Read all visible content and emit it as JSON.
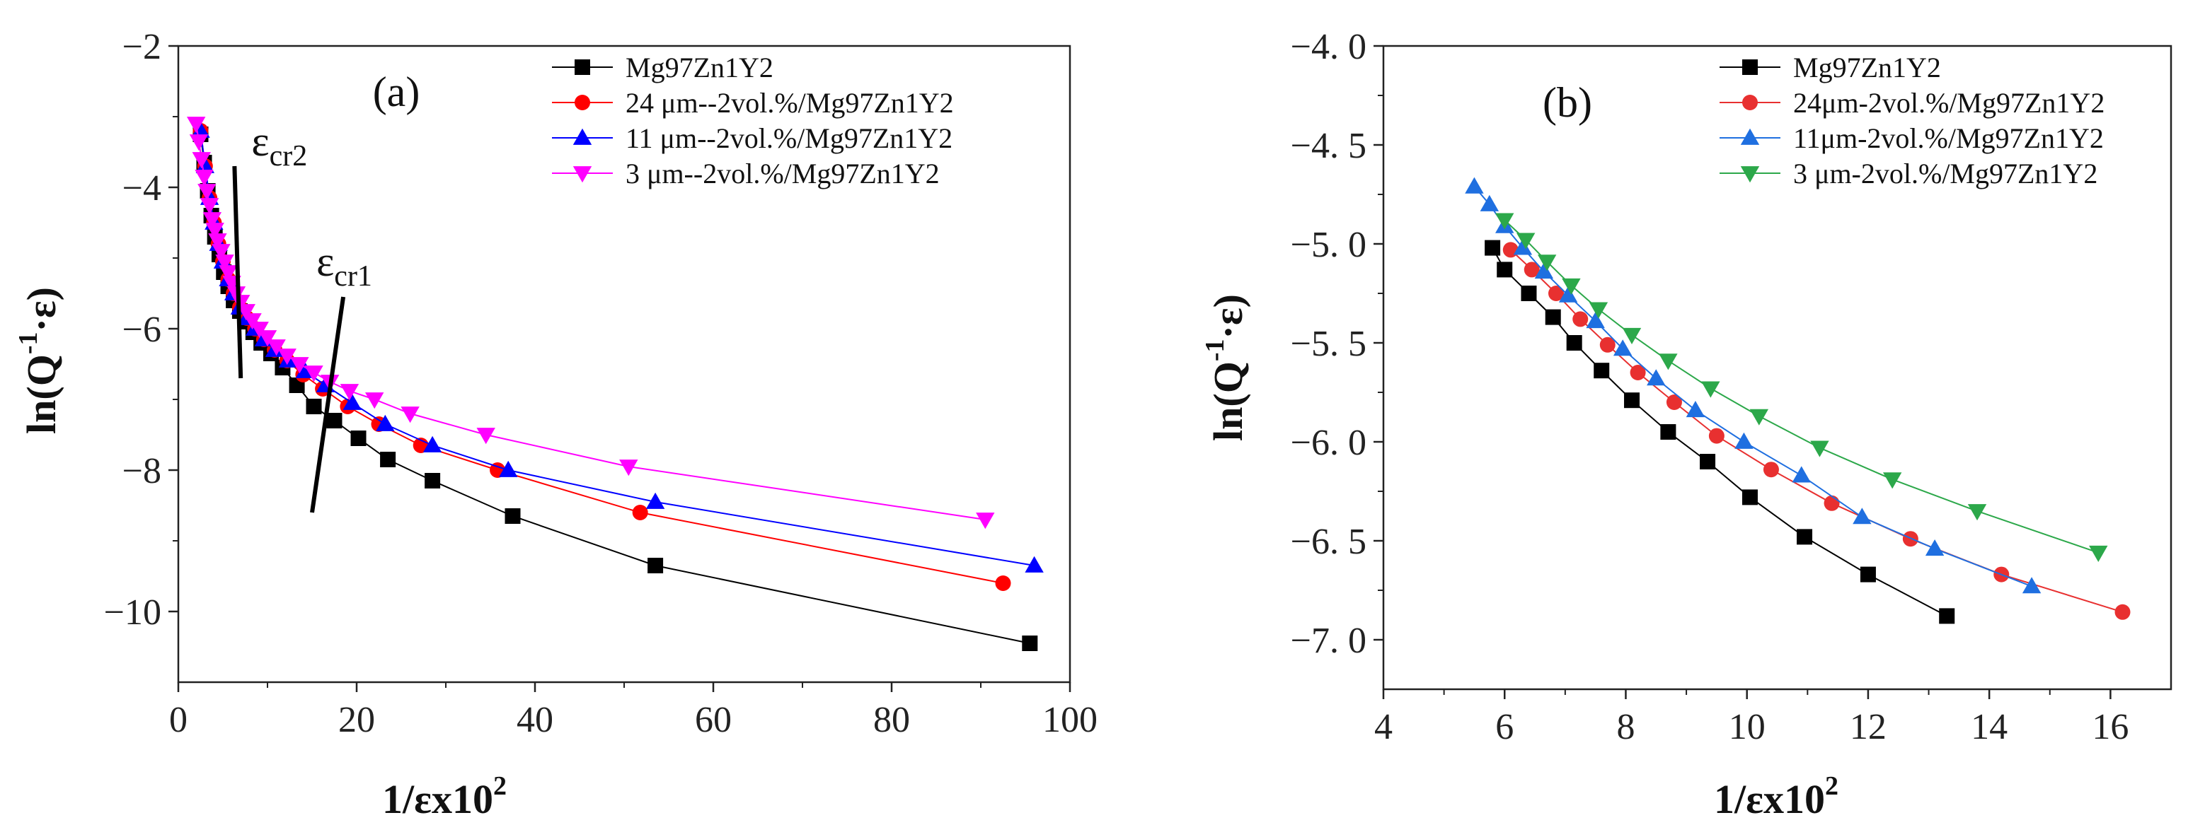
{
  "figure": {
    "background": "#ffffff"
  },
  "chart_data": [
    {
      "panel": "(a)",
      "type": "line",
      "xlabel": "1/εx10",
      "xlabel_sup": "2",
      "ylabel": "ln(Q",
      "ylabel_sup": "-1",
      "ylabel_suffix": "·ε)",
      "xlim": [
        0,
        100
      ],
      "ylim": [
        -11,
        -2
      ],
      "x_ticks": [
        0,
        20,
        40,
        60,
        80,
        100
      ],
      "x_tick_labels": [
        "0",
        "20",
        "40",
        "60",
        "80",
        "100"
      ],
      "y_ticks": [
        -10,
        -8,
        -6,
        -4,
        -2
      ],
      "y_tick_labels": [
        "−10",
        "−8",
        "−6",
        "−4",
        "−2"
      ],
      "legend_position": "top-right",
      "annotations": [
        {
          "base": "ε",
          "sub": "cr2",
          "line": [
            [
              7.0,
              -6.7
            ],
            [
              6.3,
              -3.7
            ]
          ]
        },
        {
          "base": "ε",
          "sub": "cr1",
          "line": [
            [
              15.0,
              -8.6
            ],
            [
              18.5,
              -5.55
            ]
          ]
        }
      ],
      "series": [
        {
          "name": "Mg97Zn1Y2",
          "color": "#000000",
          "marker": "square",
          "x": [
            2.5,
            2.9,
            3.3,
            3.7,
            4.1,
            4.6,
            5.1,
            5.6,
            6.2,
            6.9,
            7.6,
            8.4,
            9.3,
            10.4,
            11.7,
            13.3,
            15.2,
            17.5,
            20.2,
            23.5,
            28.5,
            37.5,
            53.5,
            95.5
          ],
          "y": [
            -3.25,
            -3.65,
            -4.05,
            -4.4,
            -4.7,
            -4.95,
            -5.2,
            -5.4,
            -5.6,
            -5.75,
            -5.9,
            -6.05,
            -6.2,
            -6.35,
            -6.55,
            -6.8,
            -7.1,
            -7.3,
            -7.55,
            -7.85,
            -8.15,
            -8.65,
            -9.35,
            -10.45
          ]
        },
        {
          "name": "24 μm--2vol.%/Mg97Zn1Y2",
          "color": "#ff0000",
          "marker": "circle",
          "x": [
            2.5,
            3.0,
            3.5,
            4.0,
            4.5,
            5.0,
            5.6,
            6.2,
            6.9,
            7.7,
            8.6,
            9.6,
            10.8,
            12.2,
            14.0,
            16.2,
            19.0,
            22.5,
            27.2,
            35.8,
            51.8,
            92.5
          ],
          "y": [
            -3.2,
            -3.7,
            -4.15,
            -4.5,
            -4.8,
            -5.05,
            -5.3,
            -5.5,
            -5.7,
            -5.85,
            -6.0,
            -6.15,
            -6.3,
            -6.45,
            -6.65,
            -6.85,
            -7.1,
            -7.35,
            -7.65,
            -8.0,
            -8.6,
            -9.6
          ]
        },
        {
          "name": "11 μm--2vol.%/Mg97Zn1Y2",
          "color": "#0000ff",
          "marker": "triangle-up",
          "x": [
            2.5,
            3.0,
            3.5,
            4.0,
            4.5,
            5.0,
            5.6,
            6.2,
            6.9,
            7.7,
            8.6,
            9.6,
            10.8,
            12.3,
            14.2,
            16.5,
            19.5,
            23.2,
            28.5,
            37.0,
            53.5,
            96.0
          ],
          "y": [
            -3.2,
            -3.7,
            -4.15,
            -4.5,
            -4.8,
            -5.05,
            -5.3,
            -5.5,
            -5.7,
            -5.85,
            -6.0,
            -6.15,
            -6.3,
            -6.45,
            -6.6,
            -6.8,
            -7.05,
            -7.35,
            -7.65,
            -8.0,
            -8.45,
            -9.35
          ]
        },
        {
          "name": "3   μm--2vol.%/Mg97Zn1Y2",
          "color": "#ff00ff",
          "marker": "triangle-down",
          "x": [
            2.0,
            2.3,
            2.6,
            2.9,
            3.2,
            3.5,
            3.8,
            4.1,
            4.4,
            4.8,
            5.2,
            5.6,
            6.0,
            6.5,
            7.0,
            7.6,
            8.3,
            9.1,
            10.0,
            11.0,
            12.2,
            13.6,
            15.2,
            17.0,
            19.2,
            22.0,
            26.0,
            34.5,
            50.5,
            90.5
          ],
          "y": [
            -3.1,
            -3.35,
            -3.6,
            -3.85,
            -4.05,
            -4.25,
            -4.45,
            -4.6,
            -4.75,
            -4.9,
            -5.05,
            -5.2,
            -5.35,
            -5.5,
            -5.62,
            -5.75,
            -5.88,
            -6.0,
            -6.12,
            -6.25,
            -6.38,
            -6.5,
            -6.62,
            -6.75,
            -6.88,
            -7.0,
            -7.2,
            -7.5,
            -7.95,
            -8.7
          ]
        }
      ]
    },
    {
      "panel": "(b)",
      "type": "line",
      "xlabel": "1/εx10",
      "xlabel_sup": "2",
      "ylabel": "ln(Q",
      "ylabel_sup": "-1",
      "ylabel_suffix": "·ε)",
      "xlim": [
        4,
        17
      ],
      "ylim": [
        -7.25,
        -4.0
      ],
      "x_ticks": [
        4,
        6,
        8,
        10,
        12,
        14,
        16
      ],
      "x_tick_labels": [
        "4",
        "6",
        "8",
        "10",
        "12",
        "14",
        "16"
      ],
      "y_ticks": [
        -7.0,
        -6.5,
        -6.0,
        -5.5,
        -5.0,
        -4.5,
        -4.0
      ],
      "y_tick_labels": [
        "−7. 0",
        "−6. 5",
        "−6. 0",
        "−5. 5",
        "−5. 0",
        "−4. 5",
        "−4. 0"
      ],
      "legend_position": "top-right",
      "series": [
        {
          "name": "Mg97Zn1Y2",
          "color": "#000000",
          "marker": "square",
          "x": [
            5.8,
            6.0,
            6.4,
            6.8,
            7.15,
            7.6,
            8.1,
            8.7,
            9.35,
            10.05,
            10.95,
            12.0,
            13.3
          ],
          "y": [
            -5.02,
            -5.13,
            -5.25,
            -5.37,
            -5.5,
            -5.64,
            -5.79,
            -5.95,
            -6.1,
            -6.28,
            -6.48,
            -6.67,
            -6.88
          ]
        },
        {
          "name": "24μm-2vol.%/Mg97Zn1Y2",
          "color": "#e83030",
          "marker": "circle",
          "x": [
            6.1,
            6.45,
            6.85,
            7.25,
            7.7,
            8.2,
            8.8,
            9.5,
            10.4,
            11.4,
            12.7,
            14.2,
            16.2
          ],
          "y": [
            -5.03,
            -5.13,
            -5.25,
            -5.38,
            -5.51,
            -5.65,
            -5.8,
            -5.97,
            -6.14,
            -6.31,
            -6.49,
            -6.67,
            -6.86
          ]
        },
        {
          "name": "11μm-2vol.%/Mg97Zn1Y2",
          "color": "#1f6fe0",
          "marker": "triangle-up",
          "x": [
            5.5,
            5.75,
            6.0,
            6.3,
            6.65,
            7.05,
            7.5,
            7.95,
            8.5,
            9.15,
            9.95,
            10.9,
            11.9,
            13.1,
            14.7
          ],
          "y": [
            -4.71,
            -4.8,
            -4.91,
            -5.02,
            -5.14,
            -5.26,
            -5.39,
            -5.53,
            -5.68,
            -5.84,
            -6.0,
            -6.17,
            -6.38,
            -6.54,
            -6.73
          ]
        },
        {
          "name": "3  μm-2vol.%/Mg97Zn1Y2",
          "color": "#2ca84a",
          "marker": "triangle-down",
          "x": [
            6.0,
            6.35,
            6.7,
            7.1,
            7.55,
            8.1,
            8.7,
            9.4,
            10.2,
            11.2,
            12.4,
            13.8,
            15.8
          ],
          "y": [
            -4.88,
            -4.98,
            -5.09,
            -5.21,
            -5.33,
            -5.46,
            -5.59,
            -5.73,
            -5.87,
            -6.03,
            -6.19,
            -6.35,
            -6.56
          ]
        }
      ]
    }
  ]
}
